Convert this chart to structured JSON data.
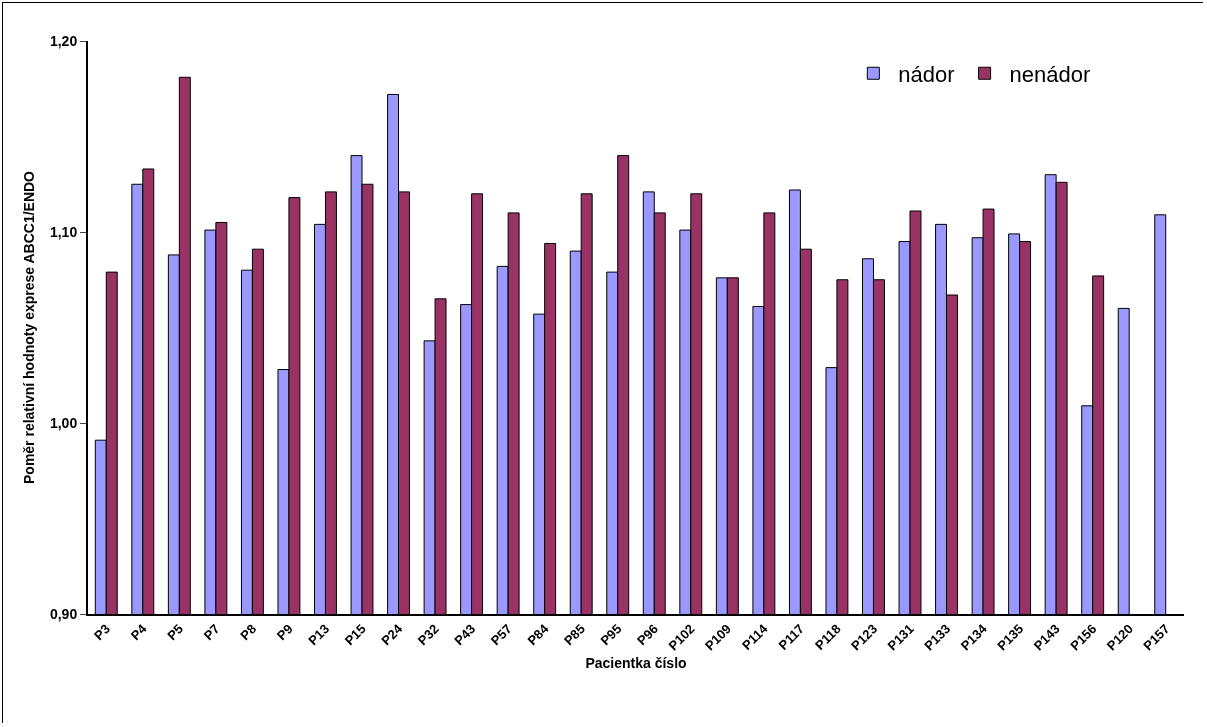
{
  "chart_data": {
    "type": "bar",
    "xlabel": "Pacientka číslo",
    "ylabel": "Poměr relativní hodnoty exprese ABCC1/ENDO",
    "categories": [
      "P3",
      "P4",
      "P5",
      "P7",
      "P8",
      "P9",
      "P13",
      "P15",
      "P24",
      "P32",
      "P43",
      "P57",
      "P84",
      "P85",
      "P95",
      "P96",
      "P102",
      "P109",
      "P114",
      "P117",
      "P118",
      "P123",
      "P131",
      "P133",
      "P134",
      "P135",
      "P143",
      "P156",
      "P120",
      "P157"
    ],
    "series": [
      {
        "name": "nádor",
        "color": "#9999ff",
        "values": [
          0.991,
          1.125,
          1.088,
          1.101,
          1.08,
          1.028,
          1.104,
          1.14,
          1.172,
          1.043,
          1.062,
          1.082,
          1.057,
          1.09,
          1.079,
          1.121,
          1.101,
          1.076,
          1.061,
          1.122,
          1.029,
          1.086,
          1.095,
          1.104,
          1.097,
          1.099,
          1.13,
          1.009,
          1.06,
          1.109
        ]
      },
      {
        "name": "nenádor",
        "color": "#993366",
        "values": [
          1.079,
          1.133,
          1.181,
          1.105,
          1.091,
          1.118,
          1.121,
          1.125,
          1.121,
          1.065,
          1.12,
          1.11,
          1.094,
          1.12,
          1.14,
          1.11,
          1.12,
          1.076,
          1.11,
          1.091,
          1.075,
          1.075,
          1.111,
          1.067,
          1.112,
          1.095,
          1.126,
          1.077,
          null,
          null
        ]
      }
    ],
    "ylim": [
      0.9,
      1.2
    ],
    "yticks": [
      {
        "value": 0.9,
        "label": "0,90"
      },
      {
        "value": 1.0,
        "label": "1,00"
      },
      {
        "value": 1.1,
        "label": "1,10"
      },
      {
        "value": 1.2,
        "label": "1,20"
      }
    ],
    "grid": false,
    "legend": "top right"
  }
}
